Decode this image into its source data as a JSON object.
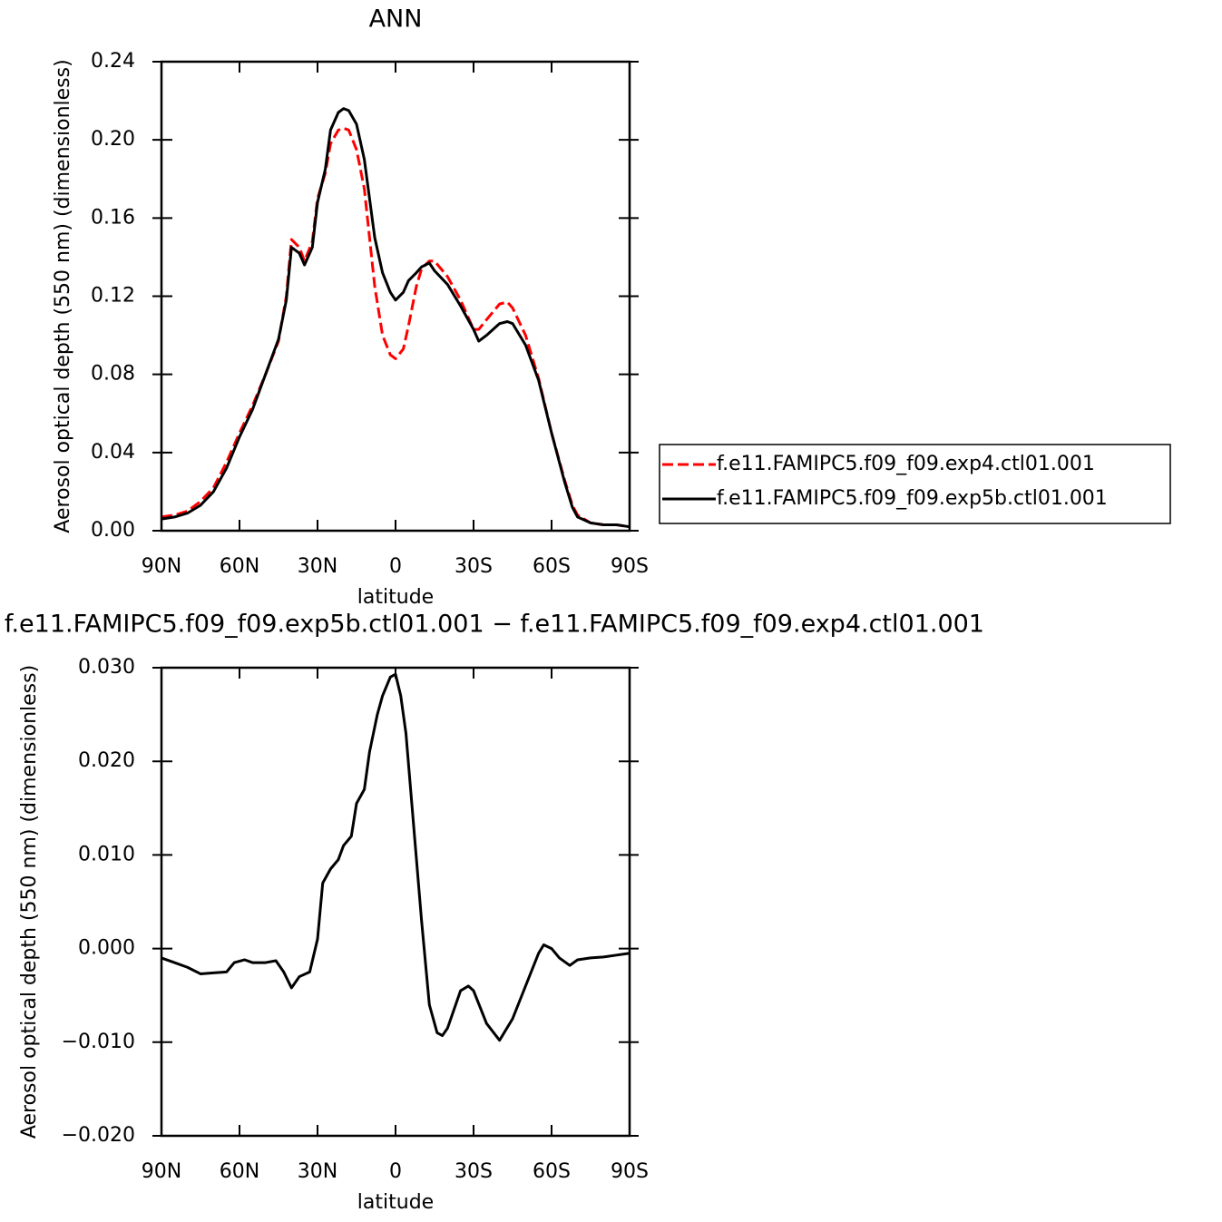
{
  "chart_data": [
    {
      "type": "line",
      "title": "ANN",
      "xlabel": "latitude",
      "ylabel": "Aerosol optical depth (550 nm) (dimensionless)",
      "x": [
        90,
        85,
        80,
        75,
        70,
        65,
        60,
        55,
        50,
        45,
        42,
        40,
        37,
        35,
        32,
        30,
        27,
        25,
        22,
        20,
        18,
        15,
        12,
        10,
        8,
        5,
        2,
        0,
        -3,
        -5,
        -8,
        -10,
        -13,
        -15,
        -20,
        -25,
        -30,
        -32,
        -35,
        -40,
        -43,
        -45,
        -50,
        -55,
        -60,
        -65,
        -68,
        -70,
        -75,
        -80,
        -85,
        -90
      ],
      "series": [
        {
          "name": "f.e11.FAMIPC5.f09_f09.exp4.ctl01.001",
          "color": "#ff0000",
          "dashed": true,
          "values": [
            0.007,
            0.008,
            0.01,
            0.015,
            0.022,
            0.035,
            0.05,
            0.064,
            0.08,
            0.097,
            0.12,
            0.149,
            0.145,
            0.138,
            0.148,
            0.17,
            0.183,
            0.198,
            0.205,
            0.206,
            0.205,
            0.195,
            0.175,
            0.15,
            0.125,
            0.1,
            0.09,
            0.088,
            0.093,
            0.105,
            0.125,
            0.134,
            0.138,
            0.138,
            0.13,
            0.118,
            0.103,
            0.103,
            0.108,
            0.116,
            0.117,
            0.114,
            0.1,
            0.078,
            0.05,
            0.026,
            0.013,
            0.008,
            0.004,
            0.003,
            0.003,
            0.002
          ]
        },
        {
          "name": "f.e11.FAMIPC5.f09_f09.exp5b.ctl01.001",
          "color": "#000000",
          "dashed": false,
          "values": [
            0.006,
            0.007,
            0.009,
            0.013,
            0.02,
            0.032,
            0.048,
            0.062,
            0.08,
            0.098,
            0.118,
            0.145,
            0.142,
            0.136,
            0.145,
            0.168,
            0.185,
            0.205,
            0.214,
            0.216,
            0.215,
            0.208,
            0.19,
            0.17,
            0.15,
            0.132,
            0.122,
            0.118,
            0.122,
            0.128,
            0.132,
            0.135,
            0.137,
            0.133,
            0.126,
            0.115,
            0.103,
            0.097,
            0.1,
            0.106,
            0.107,
            0.106,
            0.095,
            0.077,
            0.05,
            0.025,
            0.012,
            0.007,
            0.004,
            0.003,
            0.003,
            0.002
          ]
        }
      ],
      "xlim": [
        90,
        -90
      ],
      "xticks": [
        {
          "value": 90,
          "label": "90N"
        },
        {
          "value": 60,
          "label": "60N"
        },
        {
          "value": 30,
          "label": "30N"
        },
        0,
        {
          "value": -30,
          "label": "30S"
        },
        {
          "value": -60,
          "label": "60S"
        },
        {
          "value": -90,
          "label": "90S"
        }
      ],
      "ylim": [
        0,
        0.24
      ],
      "yticks": [
        {
          "value": 0,
          "label": "0.00"
        },
        0.04,
        0.08,
        0.12,
        0.16,
        {
          "value": 0.2,
          "label": "0.20"
        },
        0.24
      ],
      "legend": "right"
    },
    {
      "type": "line",
      "title": "f.e11.FAMIPC5.f09_f09.exp5b.ctl01.001 − f.e11.FAMIPC5.f09_f09.exp4.ctl01.001",
      "xlabel": "latitude",
      "ylabel": "Aerosol optical depth (550 nm) (dimensionless)",
      "x": [
        90,
        85,
        80,
        75,
        70,
        65,
        62,
        58,
        55,
        50,
        46,
        43,
        40,
        37,
        33,
        30,
        28,
        25,
        22,
        20,
        17,
        15,
        12,
        10,
        7,
        5,
        2,
        0,
        -2,
        -4,
        -7,
        -10,
        -13,
        -16,
        -18,
        -20,
        -25,
        -28,
        -30,
        -35,
        -40,
        -45,
        -50,
        -55,
        -57,
        -60,
        -63,
        -67,
        -70,
        -75,
        -80,
        -85,
        -90
      ],
      "series": [
        {
          "color": "#000000",
          "dashed": false,
          "values": [
            -0.001,
            -0.0015,
            -0.002,
            -0.0027,
            -0.0026,
            -0.0025,
            -0.0015,
            -0.0012,
            -0.0015,
            -0.0015,
            -0.0013,
            -0.0025,
            -0.0042,
            -0.003,
            -0.0025,
            0.001,
            0.007,
            0.0085,
            0.0095,
            0.011,
            0.012,
            0.0155,
            0.017,
            0.021,
            0.025,
            0.027,
            0.029,
            0.0293,
            0.027,
            0.023,
            0.013,
            0.003,
            -0.006,
            -0.009,
            -0.0093,
            -0.0085,
            -0.0045,
            -0.004,
            -0.0045,
            -0.008,
            -0.0098,
            -0.0075,
            -0.004,
            -0.0005,
            0.0004,
            0,
            -0.001,
            -0.0018,
            -0.0012,
            -0.001,
            -0.0009,
            -0.0007,
            -0.0005
          ]
        }
      ],
      "xlim": [
        90,
        -90
      ],
      "xticks": [
        {
          "value": 90,
          "label": "90N"
        },
        {
          "value": 60,
          "label": "60N"
        },
        {
          "value": 30,
          "label": "30N"
        },
        0,
        {
          "value": -30,
          "label": "30S"
        },
        {
          "value": -60,
          "label": "60S"
        },
        {
          "value": -90,
          "label": "90S"
        }
      ],
      "ylim": [
        -0.02,
        0.03
      ],
      "yticks": [
        {
          "value": -0.02,
          "label": "−0.020"
        },
        {
          "value": -0.01,
          "label": "−0.010"
        },
        {
          "value": 0,
          "label": "0.000"
        },
        {
          "value": 0.01,
          "label": "0.010"
        },
        {
          "value": 0.02,
          "label": "0.020"
        },
        {
          "value": 0.03,
          "label": "0.030"
        }
      ]
    }
  ]
}
